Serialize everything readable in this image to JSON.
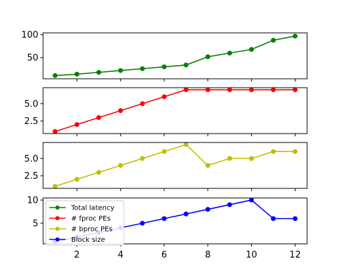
{
  "chart_data": {
    "type": "line",
    "x": [
      1,
      2,
      3,
      4,
      5,
      6,
      7,
      8,
      9,
      10,
      11,
      12
    ],
    "xticks": [
      2,
      4,
      6,
      8,
      10,
      12
    ],
    "xlim": [
      0.45,
      12.55
    ],
    "panels": [
      {
        "series": [
          {
            "name": "Total latency",
            "color": "#008000",
            "values": [
              11,
              14,
              18,
              22,
              26,
              30,
              34,
              52,
              60,
              68,
              88,
              97
            ]
          }
        ],
        "ylim": [
          4,
          104
        ],
        "yticks": [
          {
            "value": 50,
            "label": "50"
          },
          {
            "value": 100,
            "label": "100"
          }
        ]
      },
      {
        "series": [
          {
            "name": "# fproc PEs",
            "color": "#ff0000",
            "values": [
              1,
              2,
              3,
              4,
              5,
              6,
              7,
              7,
              7,
              7,
              7,
              7
            ]
          }
        ],
        "ylim": [
          0.7,
          7.3
        ],
        "yticks": [
          {
            "value": 2.5,
            "label": "2.5"
          },
          {
            "value": 5,
            "label": "5.0"
          }
        ]
      },
      {
        "series": [
          {
            "name": "# bproc PEs",
            "color": "#bfbf00",
            "values": [
              1,
              2,
              3,
              4,
              5,
              6,
              7,
              4,
              5,
              5,
              6,
              6
            ]
          }
        ],
        "ylim": [
          0.7,
          7.3
        ],
        "yticks": [
          {
            "value": 2.5,
            "label": "2.5"
          },
          {
            "value": 5,
            "label": "5.0"
          }
        ]
      },
      {
        "series": [
          {
            "name": "Block size",
            "color": "#0000ff",
            "values": [
              1,
              2,
              3,
              4,
              5,
              6,
              7,
              8,
              9,
              10,
              6,
              6
            ]
          }
        ],
        "ylim": [
          0.55,
          10.45
        ],
        "yticks": [
          {
            "value": 5,
            "label": "5"
          },
          {
            "value": 10,
            "label": "10"
          }
        ]
      }
    ],
    "legend": {
      "location": "upper-left",
      "entries": [
        {
          "label": "Total latency",
          "color": "#008000"
        },
        {
          "label": "# fproc PEs",
          "color": "#ff0000"
        },
        {
          "label": "# bproc PEs",
          "color": "#bfbf00"
        },
        {
          "label": "Block size",
          "color": "#0000ff"
        }
      ]
    }
  }
}
